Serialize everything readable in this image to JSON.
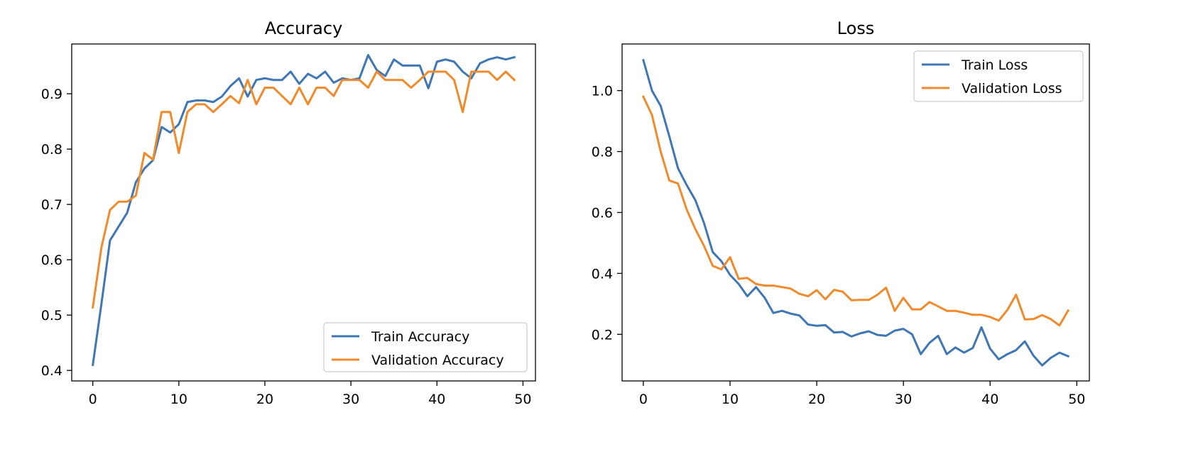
{
  "chart_data": [
    {
      "type": "line",
      "title": "Accuracy",
      "xlabel": "",
      "ylabel": "",
      "xlim": [
        -2.45,
        51.45
      ],
      "ylim": [
        0.381,
        0.99
      ],
      "x_ticks": [
        0,
        10,
        20,
        30,
        40,
        50
      ],
      "y_ticks": [
        0.4,
        0.5,
        0.6,
        0.7,
        0.8,
        0.9
      ],
      "x_tick_labels": [
        "0",
        "10",
        "20",
        "30",
        "40",
        "50"
      ],
      "y_tick_labels": [
        "0.4",
        "0.5",
        "0.6",
        "0.7",
        "0.8",
        "0.9"
      ],
      "grid": false,
      "legend_position": "lower-right",
      "series": [
        {
          "name": "Train Accuracy",
          "color": "#3f76b4",
          "values": [
            0.41,
            0.52,
            0.635,
            0.66,
            0.685,
            0.74,
            0.765,
            0.78,
            0.84,
            0.83,
            0.845,
            0.885,
            0.888,
            0.888,
            0.885,
            0.895,
            0.914,
            0.928,
            0.895,
            0.925,
            0.928,
            0.925,
            0.925,
            0.94,
            0.918,
            0.936,
            0.928,
            0.94,
            0.92,
            0.928,
            0.925,
            0.928,
            0.97,
            0.943,
            0.932,
            0.962,
            0.951,
            0.951,
            0.951,
            0.91,
            0.958,
            0.962,
            0.958,
            0.94,
            0.928,
            0.955,
            0.962,
            0.966,
            0.962,
            0.966
          ]
        },
        {
          "name": "Validation Accuracy",
          "color": "#f08a2b",
          "values": [
            0.514,
            0.622,
            0.69,
            0.705,
            0.705,
            0.716,
            0.793,
            0.781,
            0.867,
            0.867,
            0.793,
            0.867,
            0.881,
            0.881,
            0.867,
            0.881,
            0.896,
            0.883,
            0.925,
            0.881,
            0.911,
            0.911,
            0.896,
            0.881,
            0.911,
            0.881,
            0.911,
            0.911,
            0.896,
            0.925,
            0.925,
            0.925,
            0.911,
            0.94,
            0.925,
            0.925,
            0.925,
            0.911,
            0.925,
            0.94,
            0.94,
            0.94,
            0.925,
            0.867,
            0.94,
            0.94,
            0.94,
            0.925,
            0.94,
            0.925
          ]
        }
      ]
    },
    {
      "type": "line",
      "title": "Loss",
      "xlabel": "",
      "ylabel": "",
      "xlim": [
        -2.45,
        51.45
      ],
      "ylim": [
        0.047,
        1.153
      ],
      "x_ticks": [
        0,
        10,
        20,
        30,
        40,
        50
      ],
      "y_ticks": [
        0.2,
        0.4,
        0.6,
        0.8,
        1.0
      ],
      "x_tick_labels": [
        "0",
        "10",
        "20",
        "30",
        "40",
        "50"
      ],
      "y_tick_labels": [
        "0.2",
        "0.4",
        "0.6",
        "0.8",
        "1.0"
      ],
      "grid": false,
      "legend_position": "upper-right",
      "series": [
        {
          "name": "Train Loss",
          "color": "#3f76b4",
          "values": [
            1.1,
            1.0,
            0.95,
            0.85,
            0.745,
            0.69,
            0.64,
            0.565,
            0.47,
            0.44,
            0.395,
            0.365,
            0.325,
            0.355,
            0.32,
            0.27,
            0.277,
            0.268,
            0.262,
            0.232,
            0.228,
            0.23,
            0.206,
            0.208,
            0.193,
            0.203,
            0.21,
            0.198,
            0.195,
            0.212,
            0.218,
            0.2,
            0.135,
            0.172,
            0.195,
            0.135,
            0.157,
            0.14,
            0.155,
            0.223,
            0.153,
            0.118,
            0.135,
            0.148,
            0.177,
            0.13,
            0.098,
            0.123,
            0.14,
            0.128
          ]
        },
        {
          "name": "Validation Loss",
          "color": "#f08a2b",
          "values": [
            0.98,
            0.92,
            0.8,
            0.705,
            0.695,
            0.61,
            0.545,
            0.49,
            0.425,
            0.413,
            0.453,
            0.382,
            0.385,
            0.365,
            0.36,
            0.36,
            0.355,
            0.35,
            0.333,
            0.325,
            0.345,
            0.315,
            0.346,
            0.34,
            0.312,
            0.313,
            0.313,
            0.33,
            0.353,
            0.277,
            0.32,
            0.282,
            0.282,
            0.306,
            0.292,
            0.277,
            0.277,
            0.271,
            0.264,
            0.264,
            0.257,
            0.245,
            0.28,
            0.33,
            0.249,
            0.25,
            0.263,
            0.25,
            0.229,
            0.278
          ]
        }
      ]
    }
  ]
}
